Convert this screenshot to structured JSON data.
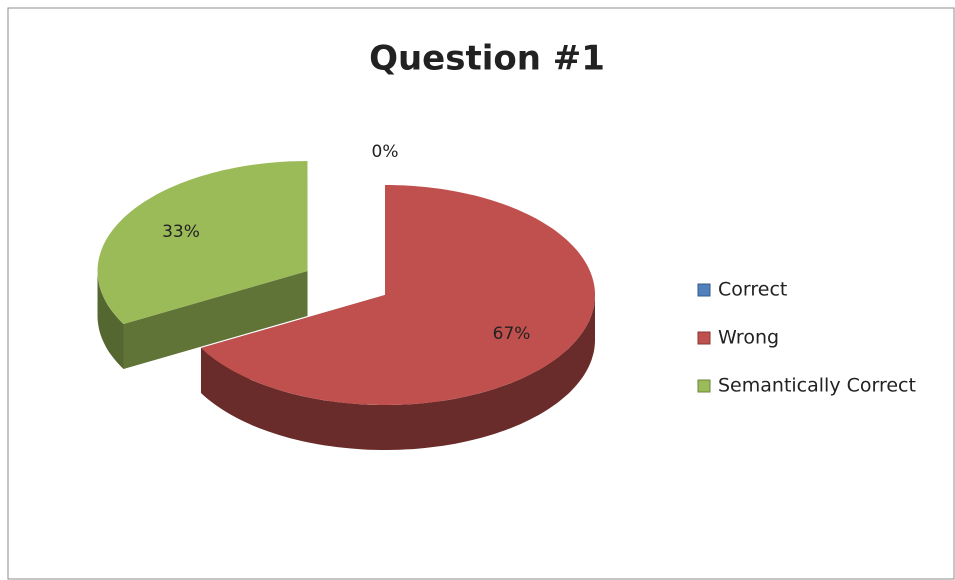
{
  "chart_data": {
    "type": "pie",
    "title": "Question #1",
    "categories": [
      "Correct",
      "Wrong",
      "Semantically Correct"
    ],
    "values": [
      0,
      67,
      33
    ],
    "value_labels": [
      "0%",
      "67%",
      "33%"
    ],
    "colors": [
      "#4f81bd",
      "#c0504d",
      "#9bbb59"
    ],
    "explode": [
      false,
      false,
      true
    ],
    "legend": "right"
  }
}
